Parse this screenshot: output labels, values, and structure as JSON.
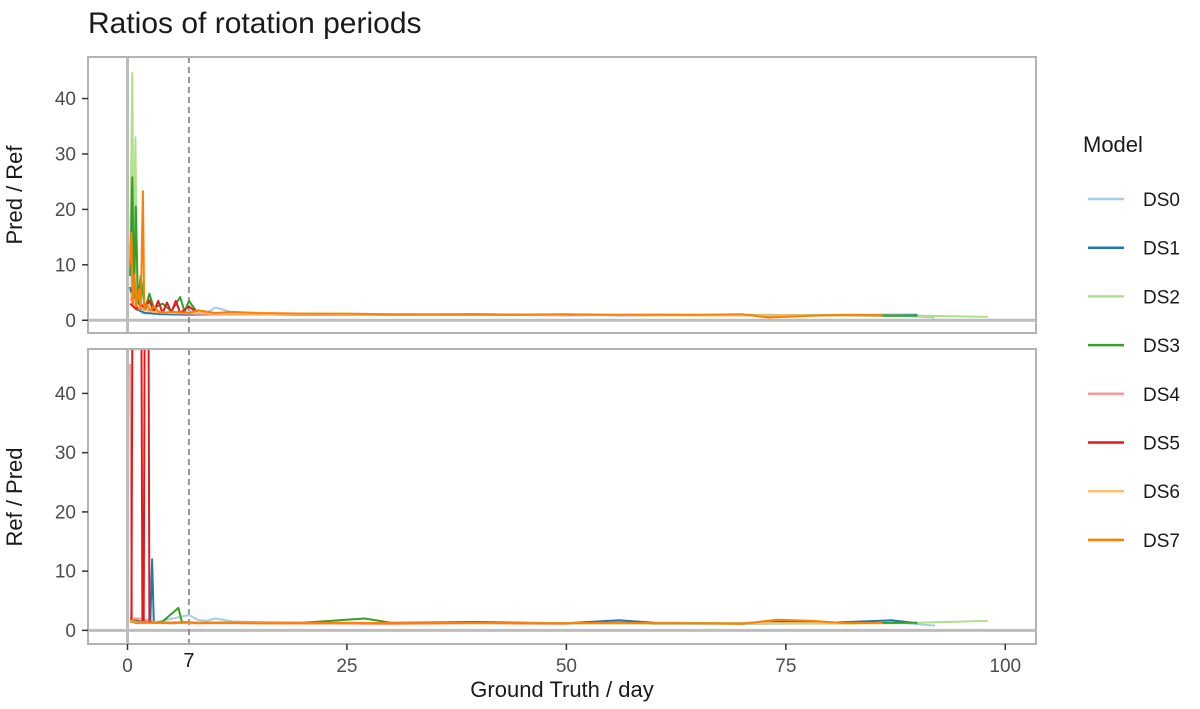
{
  "chart_data": {
    "type": "line",
    "title": "Ratios of rotation periods",
    "xlabel": "Ground Truth / day",
    "xlim": [
      -4.5,
      103.5
    ],
    "x_ticks": [
      0,
      25,
      50,
      75,
      100
    ],
    "x_tick_labels": [
      "0",
      "25",
      "50",
      "75",
      "100"
    ],
    "reference_line": {
      "x": 7,
      "label": "7",
      "style": "dashed"
    },
    "legend_title": "Model",
    "legend_position": "right",
    "grid": false,
    "panels": [
      {
        "ylabel": "Pred / Ref",
        "ylim": [
          -2.3,
          47.5
        ],
        "y_ticks": [
          0,
          10,
          20,
          30,
          40
        ],
        "y_tick_labels": [
          "0",
          "10",
          "20",
          "30",
          "40"
        ]
      },
      {
        "ylabel": "Ref / Pred",
        "ylim": [
          -2.3,
          47.5
        ],
        "y_ticks": [
          0,
          10,
          20,
          30,
          40
        ],
        "y_tick_labels": [
          "0",
          "10",
          "20",
          "30",
          "40"
        ]
      }
    ],
    "series": [
      {
        "name": "DS0",
        "color": "#A6CEE3",
        "panel1": [
          [
            0.3,
            14
          ],
          [
            0.5,
            5
          ],
          [
            0.8,
            3
          ],
          [
            1.2,
            2
          ],
          [
            1.8,
            1.2
          ],
          [
            3,
            1.5
          ],
          [
            5,
            1.3
          ],
          [
            7,
            1.6
          ],
          [
            9,
            1.3
          ],
          [
            10,
            2.3
          ],
          [
            12,
            1.4
          ],
          [
            15,
            1.2
          ],
          [
            20,
            1.2
          ],
          [
            30,
            1.1
          ],
          [
            40,
            1.0
          ],
          [
            50,
            1.1
          ],
          [
            56,
            0.8
          ],
          [
            60,
            0.9
          ],
          [
            70,
            1.0
          ],
          [
            80,
            0.9
          ],
          [
            88,
            0.8
          ],
          [
            92,
            0.5
          ]
        ],
        "panel2": [
          [
            0.3,
            1.5
          ],
          [
            1,
            1.2
          ],
          [
            3,
            1.3
          ],
          [
            7,
            2.6
          ],
          [
            8,
            1.8
          ],
          [
            9,
            1.6
          ],
          [
            10,
            2.0
          ],
          [
            12,
            1.5
          ],
          [
            15,
            1.4
          ],
          [
            20,
            1.3
          ],
          [
            30,
            1.2
          ],
          [
            40,
            1.2
          ],
          [
            50,
            1.1
          ],
          [
            56,
            1.5
          ],
          [
            60,
            1.1
          ],
          [
            70,
            1.1
          ],
          [
            80,
            1.2
          ],
          [
            88,
            1.3
          ],
          [
            92,
            0.8
          ]
        ]
      },
      {
        "name": "DS1",
        "color": "#1F78B4",
        "panel1": [
          [
            0.3,
            6
          ],
          [
            0.6,
            3
          ],
          [
            1,
            2
          ],
          [
            2,
            1.3
          ],
          [
            4,
            1.1
          ],
          [
            7,
            1.0
          ],
          [
            10,
            1.1
          ],
          [
            20,
            1.0
          ],
          [
            30,
            1.0
          ],
          [
            40,
            1.1
          ],
          [
            50,
            0.9
          ],
          [
            60,
            1.0
          ],
          [
            70,
            0.9
          ],
          [
            80,
            0.9
          ],
          [
            88,
            1.0
          ],
          [
            90,
            1.0
          ]
        ],
        "panel2": [
          [
            0.3,
            2
          ],
          [
            1.5,
            1.5
          ],
          [
            2.6,
            1.3
          ],
          [
            2.8,
            12
          ],
          [
            3.0,
            1.3
          ],
          [
            5,
            1.2
          ],
          [
            7,
            1.3
          ],
          [
            10,
            1.3
          ],
          [
            20,
            1.2
          ],
          [
            30,
            1.2
          ],
          [
            40,
            1.3
          ],
          [
            50,
            1.2
          ],
          [
            56,
            1.7
          ],
          [
            60,
            1.3
          ],
          [
            70,
            1.2
          ],
          [
            75,
            1.5
          ],
          [
            80,
            1.3
          ],
          [
            87,
            1.7
          ],
          [
            90,
            1.2
          ]
        ]
      },
      {
        "name": "DS2",
        "color": "#B2DF8A",
        "panel1": [
          [
            0.3,
            10
          ],
          [
            0.55,
            44.6
          ],
          [
            0.7,
            6
          ],
          [
            0.9,
            33
          ],
          [
            1.1,
            4
          ],
          [
            1.5,
            7
          ],
          [
            2,
            2
          ],
          [
            3,
            1.6
          ],
          [
            4,
            1.3
          ],
          [
            5,
            1.5
          ],
          [
            7,
            1.3
          ],
          [
            8,
            1.4
          ],
          [
            10,
            1.2
          ],
          [
            20,
            1.1
          ],
          [
            30,
            1.0
          ],
          [
            40,
            1.0
          ],
          [
            50,
            1.0
          ],
          [
            60,
            1.0
          ],
          [
            70,
            0.9
          ],
          [
            80,
            0.9
          ],
          [
            88,
            0.9
          ],
          [
            98,
            0.6
          ]
        ],
        "panel2": [
          [
            0.3,
            1.6
          ],
          [
            2,
            1.2
          ],
          [
            6,
            1.4
          ],
          [
            8,
            1.3
          ],
          [
            10,
            1.3
          ],
          [
            20,
            1.2
          ],
          [
            30,
            1.2
          ],
          [
            40,
            1.3
          ],
          [
            50,
            1.2
          ],
          [
            60,
            1.2
          ],
          [
            70,
            1.3
          ],
          [
            80,
            1.2
          ],
          [
            88,
            1.2
          ],
          [
            98,
            1.6
          ]
        ]
      },
      {
        "name": "DS3",
        "color": "#33A02C",
        "panel1": [
          [
            0.3,
            8
          ],
          [
            0.55,
            25.8
          ],
          [
            0.75,
            4
          ],
          [
            0.95,
            20.5
          ],
          [
            1.2,
            3
          ],
          [
            1.5,
            8
          ],
          [
            2,
            2
          ],
          [
            2.5,
            4.8
          ],
          [
            3,
            2.2
          ],
          [
            4,
            3
          ],
          [
            5,
            1.6
          ],
          [
            6,
            4.2
          ],
          [
            6.5,
            1.5
          ],
          [
            7,
            3.5
          ],
          [
            8,
            1.3
          ],
          [
            10,
            1.3
          ],
          [
            20,
            1.1
          ],
          [
            30,
            1.0
          ],
          [
            40,
            1.0
          ],
          [
            50,
            1.0
          ],
          [
            60,
            0.9
          ],
          [
            70,
            0.9
          ],
          [
            80,
            0.9
          ],
          [
            88,
            0.8
          ],
          [
            90,
            0.8
          ]
        ],
        "panel2": [
          [
            0.3,
            1.5
          ],
          [
            1,
            1.3
          ],
          [
            3,
            1.3
          ],
          [
            4,
            1.5
          ],
          [
            5.8,
            3.8
          ],
          [
            6.2,
            1.4
          ],
          [
            8,
            1.3
          ],
          [
            10,
            1.3
          ],
          [
            20,
            1.3
          ],
          [
            27,
            2.0
          ],
          [
            30,
            1.3
          ],
          [
            40,
            1.4
          ],
          [
            50,
            1.2
          ],
          [
            60,
            1.2
          ],
          [
            70,
            1.2
          ],
          [
            80,
            1.2
          ],
          [
            90,
            1.3
          ]
        ]
      },
      {
        "name": "DS4",
        "color": "#FB9A99",
        "panel1": [
          [
            0.3,
            4
          ],
          [
            0.8,
            2.5
          ],
          [
            1.5,
            2
          ],
          [
            3,
            1.5
          ],
          [
            5,
            1.3
          ],
          [
            7,
            1.2
          ],
          [
            10,
            1.1
          ],
          [
            20,
            1.0
          ],
          [
            30,
            1.0
          ],
          [
            40,
            1.0
          ],
          [
            50,
            0.9
          ]
        ],
        "panel2": [
          [
            0.3,
            45
          ],
          [
            0.5,
            2
          ],
          [
            1.5,
            2
          ],
          [
            3,
            1.4
          ],
          [
            5,
            1.3
          ],
          [
            7,
            1.2
          ],
          [
            10,
            1.2
          ],
          [
            20,
            1.2
          ],
          [
            30,
            1.1
          ],
          [
            40,
            1.2
          ],
          [
            50,
            1.1
          ]
        ]
      },
      {
        "name": "DS5",
        "color": "#E31A1C",
        "panel1": [
          [
            0.3,
            3
          ],
          [
            1,
            2
          ],
          [
            1.5,
            3
          ],
          [
            2,
            2
          ],
          [
            2.5,
            3.6
          ],
          [
            3,
            1.5
          ],
          [
            3.5,
            3.5
          ],
          [
            4,
            1.3
          ],
          [
            4.5,
            3.2
          ],
          [
            5,
            1.4
          ],
          [
            5.5,
            3.5
          ],
          [
            6,
            1.3
          ],
          [
            7,
            2.5
          ],
          [
            8,
            1.3
          ],
          [
            10,
            1.2
          ],
          [
            20,
            1.1
          ],
          [
            30,
            1.0
          ],
          [
            40,
            1.0
          ],
          [
            45,
            1.0
          ]
        ],
        "panel2": [
          [
            0.3,
            1.5
          ],
          [
            0.45,
            1.5
          ],
          [
            0.55,
            47.5
          ],
          [
            1.6,
            47.5
          ],
          [
            1.7,
            1.5
          ],
          [
            1.85,
            1.5
          ],
          [
            1.95,
            47.5
          ],
          [
            2.4,
            47.5
          ],
          [
            2.5,
            1.5
          ],
          [
            3,
            1.3
          ],
          [
            5,
            1.3
          ],
          [
            7,
            1.3
          ],
          [
            10,
            1.3
          ],
          [
            20,
            1.2
          ],
          [
            30,
            1.2
          ],
          [
            40,
            1.4
          ],
          [
            45,
            1.2
          ]
        ]
      },
      {
        "name": "DS6",
        "color": "#FDBF6F",
        "panel1": [
          [
            0.3,
            5
          ],
          [
            0.6,
            4
          ],
          [
            1,
            3
          ],
          [
            1.5,
            2
          ],
          [
            2,
            1.8
          ],
          [
            3,
            1.5
          ],
          [
            5,
            1.3
          ],
          [
            7,
            1.4
          ],
          [
            10,
            1.2
          ],
          [
            20,
            1.1
          ],
          [
            30,
            1.0
          ],
          [
            40,
            1.0
          ],
          [
            50,
            1.0
          ],
          [
            60,
            0.9
          ],
          [
            70,
            0.9
          ],
          [
            80,
            0.9
          ],
          [
            86,
            0.9
          ]
        ],
        "panel2": [
          [
            0.3,
            1.6
          ],
          [
            1,
            1.4
          ],
          [
            3,
            1.3
          ],
          [
            5,
            1.3
          ],
          [
            7,
            1.3
          ],
          [
            10,
            1.3
          ],
          [
            20,
            1.2
          ],
          [
            30,
            1.2
          ],
          [
            40,
            1.2
          ],
          [
            50,
            1.2
          ],
          [
            60,
            1.2
          ],
          [
            70,
            1.2
          ],
          [
            80,
            1.2
          ],
          [
            86,
            1.2
          ]
        ]
      },
      {
        "name": "DS7",
        "color": "#FF7F00",
        "panel1": [
          [
            0.3,
            10
          ],
          [
            0.45,
            15.8
          ],
          [
            0.6,
            3
          ],
          [
            0.8,
            8.2
          ],
          [
            1.0,
            2.5
          ],
          [
            1.3,
            5.6
          ],
          [
            1.5,
            2
          ],
          [
            1.75,
            23.3
          ],
          [
            1.9,
            2
          ],
          [
            2.2,
            2.8
          ],
          [
            2.6,
            1.8
          ],
          [
            3,
            2.5
          ],
          [
            3.5,
            1.6
          ],
          [
            4,
            1.3
          ],
          [
            5,
            1.5
          ],
          [
            7,
            1.3
          ],
          [
            8,
            1.8
          ],
          [
            10,
            1.3
          ],
          [
            12,
            1.5
          ],
          [
            15,
            1.3
          ],
          [
            20,
            1.2
          ],
          [
            25,
            1.2
          ],
          [
            30,
            1.1
          ],
          [
            35,
            1.1
          ],
          [
            40,
            1.1
          ],
          [
            45,
            1.0
          ],
          [
            50,
            1.1
          ],
          [
            55,
            1.0
          ],
          [
            60,
            1.0
          ],
          [
            65,
            1.0
          ],
          [
            70,
            1.1
          ],
          [
            73,
            0.5
          ],
          [
            78,
            0.8
          ],
          [
            82,
            1.0
          ],
          [
            86,
            0.9
          ]
        ],
        "panel2": [
          [
            0.3,
            1.8
          ],
          [
            1,
            1.5
          ],
          [
            2,
            1.4
          ],
          [
            3,
            1.3
          ],
          [
            5,
            1.3
          ],
          [
            7,
            1.4
          ],
          [
            8,
            1.2
          ],
          [
            10,
            1.3
          ],
          [
            15,
            1.2
          ],
          [
            20,
            1.2
          ],
          [
            25,
            1.3
          ],
          [
            30,
            1.2
          ],
          [
            35,
            1.2
          ],
          [
            40,
            1.3
          ],
          [
            45,
            1.2
          ],
          [
            50,
            1.2
          ],
          [
            55,
            1.3
          ],
          [
            60,
            1.2
          ],
          [
            65,
            1.2
          ],
          [
            70,
            1.1
          ],
          [
            74,
            1.8
          ],
          [
            78,
            1.6
          ],
          [
            82,
            1.2
          ],
          [
            86,
            1.3
          ]
        ]
      }
    ]
  }
}
